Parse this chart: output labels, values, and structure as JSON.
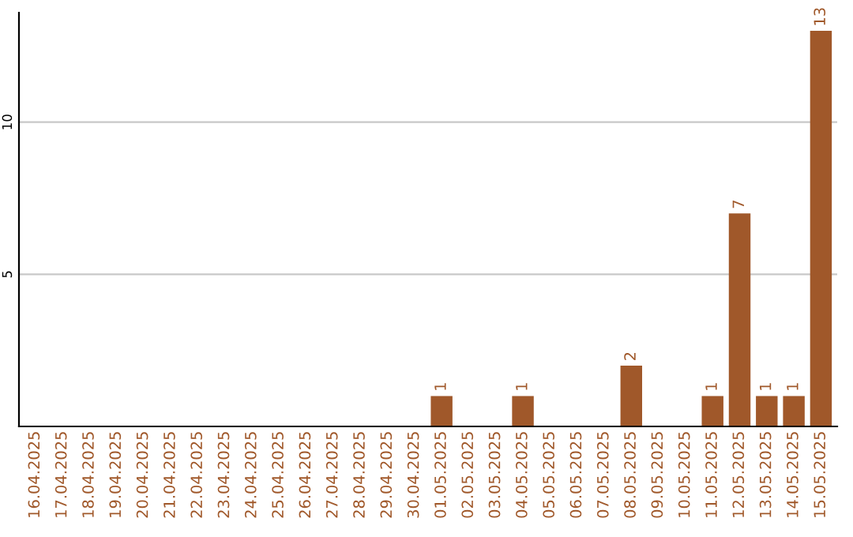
{
  "chart_data": {
    "type": "bar",
    "categories": [
      "16.04.2025",
      "17.04.2025",
      "18.04.2025",
      "19.04.2025",
      "20.04.2025",
      "21.04.2025",
      "22.04.2025",
      "23.04.2025",
      "24.04.2025",
      "25.04.2025",
      "26.04.2025",
      "27.04.2025",
      "28.04.2025",
      "29.04.2025",
      "30.04.2025",
      "01.05.2025",
      "02.05.2025",
      "03.05.2025",
      "04.05.2025",
      "05.05.2025",
      "06.05.2025",
      "07.05.2025",
      "08.05.2025",
      "09.05.2025",
      "10.05.2025",
      "11.05.2025",
      "12.05.2025",
      "13.05.2025",
      "14.05.2025",
      "15.05.2025"
    ],
    "values": [
      0,
      0,
      0,
      0,
      0,
      0,
      0,
      0,
      0,
      0,
      0,
      0,
      0,
      0,
      0,
      1,
      0,
      0,
      1,
      0,
      0,
      0,
      2,
      0,
      0,
      1,
      7,
      1,
      1,
      13
    ],
    "value_labels": [
      null,
      null,
      null,
      null,
      null,
      null,
      null,
      null,
      null,
      null,
      null,
      null,
      null,
      null,
      null,
      "1",
      null,
      null,
      "1",
      null,
      null,
      null,
      "2",
      null,
      null,
      "1",
      "7",
      "1",
      "1",
      "13"
    ],
    "color": "#a0582a",
    "ylim": [
      0,
      13.6
    ],
    "yticks": [
      5,
      10
    ],
    "grid": "y"
  }
}
